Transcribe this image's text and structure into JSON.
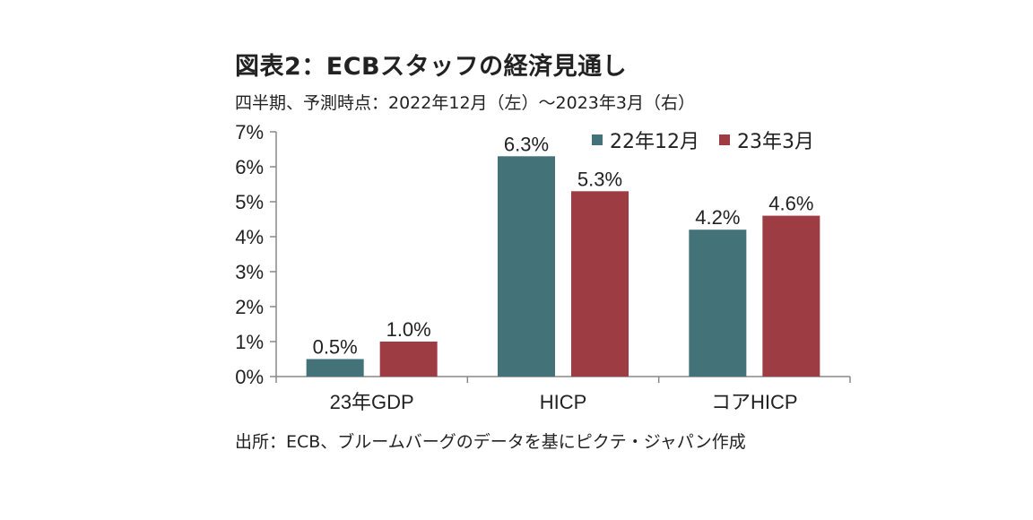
{
  "title": "図表2：ECBスタッフの経済見通し",
  "subtitle": "四半期、予測時点：2022年12月（左）〜2023年3月（右）",
  "source": "出所：ECB、ブルームバーグのデータを基にピクテ・ジャパン作成",
  "colors": {
    "series_1": "#437279",
    "series_2": "#9e3c44",
    "axis": "#888888",
    "text": "#222222"
  },
  "chart_data": {
    "type": "bar",
    "categories": [
      "23年GDP",
      "HICP",
      "コアHICP"
    ],
    "series": [
      {
        "name": "22年12月",
        "values": [
          0.5,
          6.3,
          4.2
        ],
        "labels": [
          "0.5%",
          "6.3%",
          "4.2%"
        ]
      },
      {
        "name": "23年3月",
        "values": [
          1.0,
          5.3,
          4.6
        ],
        "labels": [
          "1.0%",
          "5.3%",
          "4.6%"
        ]
      }
    ],
    "ylim": [
      0,
      7
    ],
    "yticks": [
      "0%",
      "1%",
      "2%",
      "3%",
      "4%",
      "5%",
      "6%",
      "7%"
    ],
    "legend_position": "top-right",
    "grid": false
  }
}
